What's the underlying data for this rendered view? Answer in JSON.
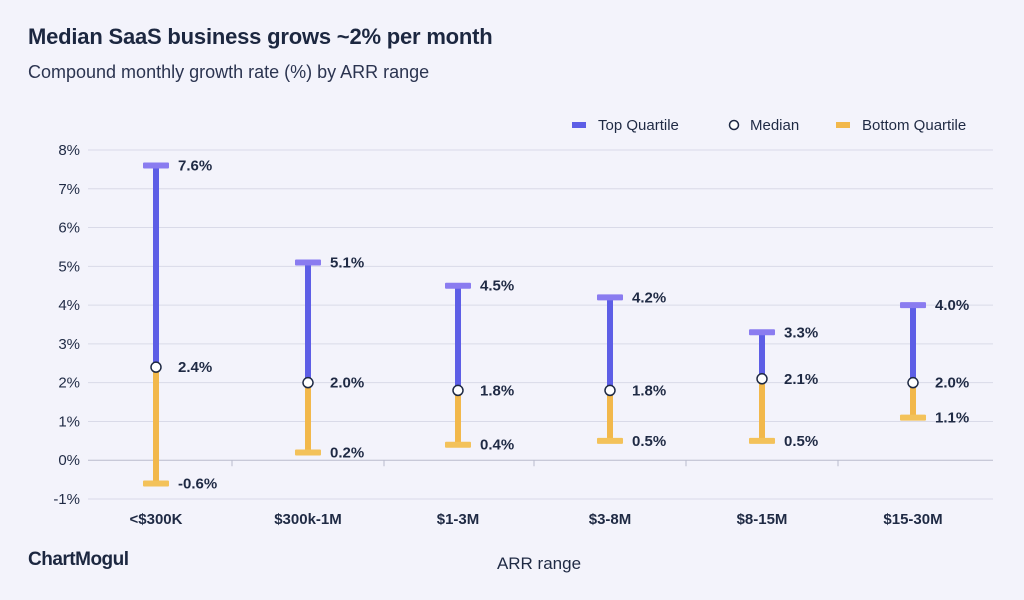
{
  "header": {
    "title": "Median SaaS business grows ~2% per month",
    "subtitle": "Compound monthly growth rate (%) by ARR range"
  },
  "brand": {
    "name": "ChartMogul"
  },
  "colors": {
    "top": "#5d5ee6",
    "top_cap": "#8a7cf0",
    "bottom": "#f2b84b",
    "bottom_cap": "#f3c25a",
    "grid": "#d9dae8",
    "median_fill": "#ffffff",
    "median_stroke": "#1f2a44"
  },
  "chart_data": {
    "type": "range",
    "title": "Median SaaS business grows ~2% per month",
    "subtitle": "Compound monthly growth rate (%) by ARR range",
    "xlabel": "ARR range",
    "ylabel": "",
    "ylim": [
      -1,
      8
    ],
    "yticks": [
      -1,
      0,
      1,
      2,
      3,
      4,
      5,
      6,
      7,
      8
    ],
    "ytick_labels": [
      "-1%",
      "0%",
      "1%",
      "2%",
      "3%",
      "4%",
      "5%",
      "6%",
      "7%",
      "8%"
    ],
    "grid": true,
    "legend_position": "top-right",
    "categories": [
      "<$300K",
      "$300k-1M",
      "$1-3M",
      "$3-8M",
      "$8-15M",
      "$15-30M"
    ],
    "series": [
      {
        "name": "Top Quartile",
        "values": [
          7.6,
          5.1,
          4.5,
          4.2,
          3.3,
          4.0
        ],
        "labels": [
          "7.6%",
          "5.1%",
          "4.5%",
          "4.2%",
          "3.3%",
          "4.0%"
        ]
      },
      {
        "name": "Median",
        "values": [
          2.4,
          2.0,
          1.8,
          1.8,
          2.1,
          2.0
        ],
        "labels": [
          "2.4%",
          "2.0%",
          "1.8%",
          "1.8%",
          "2.1%",
          "2.0%"
        ]
      },
      {
        "name": "Bottom Quartile",
        "values": [
          -0.6,
          0.2,
          0.4,
          0.5,
          0.5,
          1.1
        ],
        "labels": [
          "-0.6%",
          "0.2%",
          "0.4%",
          "0.5%",
          "0.5%",
          "1.1%"
        ]
      }
    ]
  }
}
